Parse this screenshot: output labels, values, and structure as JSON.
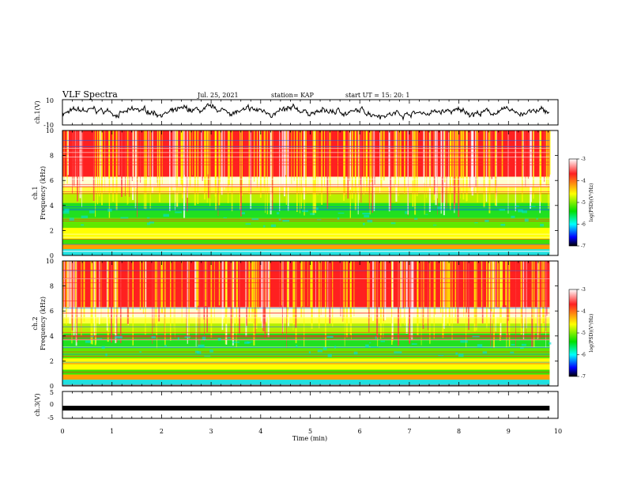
{
  "header": {
    "title": "VLF Spectra",
    "date": "Jul. 25, 2021",
    "station": "station= KAP",
    "start": "start UT =  15: 20: 1"
  },
  "chart_data": [
    {
      "type": "line",
      "panel": "ch1-waveform",
      "ylabel": "ch.1(V)",
      "ylim": [
        -10,
        10
      ],
      "yticks": [
        "10",
        "-10"
      ],
      "xlim": [
        0,
        10
      ],
      "series_color": "#000000"
    },
    {
      "type": "heatmap",
      "panel": "ch1-spectrogram",
      "ylabel_top": "ch.1",
      "ylabel": "Frequency (kHz)",
      "ylim": [
        0,
        10
      ],
      "yticks": [
        "0",
        "2",
        "4",
        "6",
        "8",
        "10"
      ],
      "xlim": [
        0,
        9.83
      ],
      "colorbar": {
        "label": "log(PSD)(V²/Hz)",
        "range": [
          -7,
          -3
        ],
        "ticks": [
          "-3",
          "-4",
          "-5",
          "-6",
          "-7"
        ],
        "colors": [
          "#ffffff",
          "#ff2020",
          "#ffff00",
          "#00e000",
          "#00ffff",
          "#0000ff",
          "#000000"
        ]
      }
    },
    {
      "type": "heatmap",
      "panel": "ch2-spectrogram",
      "ylabel_top": "ch.2",
      "ylabel": "Frequency (kHz)",
      "ylim": [
        0,
        10
      ],
      "yticks": [
        "0",
        "2",
        "4",
        "6",
        "8",
        "10"
      ],
      "xlim": [
        0,
        9.83
      ],
      "colorbar": {
        "label": "log(PSD)(V²/Hz)",
        "range": [
          -7,
          -3
        ],
        "ticks": [
          "-3",
          "-4",
          "-5",
          "-6",
          "-7"
        ],
        "colors": [
          "#ffffff",
          "#ff2020",
          "#ffff00",
          "#00e000",
          "#00ffff",
          "#0000ff",
          "#000000"
        ]
      }
    },
    {
      "type": "line",
      "panel": "ch3-waveform",
      "ylabel": "ch.3(V)",
      "ylim": [
        -5,
        5
      ],
      "yticks": [
        "5",
        "0",
        "-5"
      ],
      "xlim": [
        0,
        10
      ],
      "values_y": [
        -1.2
      ],
      "xlabel": "Time (min)",
      "xticks": [
        "0",
        "1",
        "2",
        "3",
        "4",
        "5",
        "6",
        "7",
        "8",
        "9",
        "10"
      ]
    }
  ]
}
